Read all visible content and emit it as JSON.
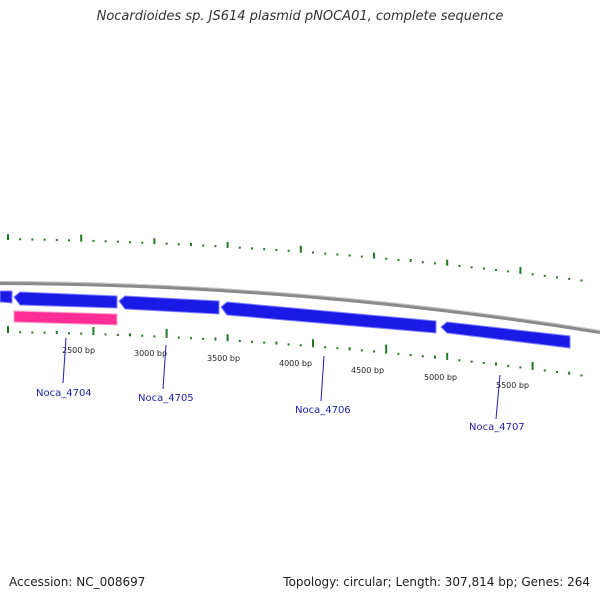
{
  "title": "Nocardioides sp. JS614 plasmid pNOCA01, complete sequence",
  "footer": {
    "accession": "Accession: NC_008697",
    "summary": "Topology: circular; Length: 307,814 bp; Genes: 264"
  },
  "colors": {
    "background": "#ffffff",
    "backbone": "#8a8a8a",
    "cds": "#1a1ae6",
    "cds_highlight": "#8080ff",
    "rna": "#ff2d95",
    "rna_highlight": "#ffa0cc",
    "gc_ticks": "#1e7a1e",
    "gene_label": "#1f1fa8",
    "label_line": "#1f1fa8"
  },
  "scale": {
    "labels": [
      "2500 bp",
      "3000 bp",
      "3500 bp",
      "4000 bp",
      "4500 bp",
      "5000 bp",
      "5500 bp"
    ]
  },
  "genes": [
    {
      "id": "Noca_4704",
      "label": "Noca_4704"
    },
    {
      "id": "Noca_4705",
      "label": "Noca_4705"
    },
    {
      "id": "Noca_4706",
      "label": "Noca_4706"
    },
    {
      "id": "Noca_4707",
      "label": "Noca_4707"
    }
  ]
}
